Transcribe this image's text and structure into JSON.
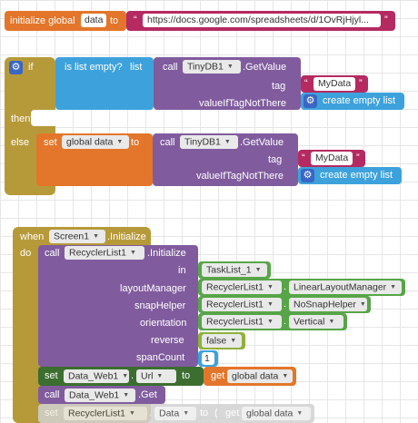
{
  "global_init": {
    "label": "initialize global",
    "var_name": "data",
    "to": "to",
    "url_value": "https://docs.google.com/spreadsheets/d/1OvRjHjyl..."
  },
  "if_block": {
    "if_label": "if",
    "is_empty": "is list empty?",
    "list_label": "list",
    "call": "call",
    "component": "TinyDB1",
    "method": ".GetValue",
    "tag": "tag",
    "tag_value": "MyData",
    "value_if": "valueIfTagNotThere",
    "create_list": "create empty list",
    "then": "then",
    "else": "else",
    "set": "set",
    "global_data": "global data",
    "to": "to"
  },
  "when_block": {
    "when": "when",
    "screen": "Screen1",
    "event": ".Initialize",
    "do": "do",
    "call": "call",
    "recycler": "RecyclerList1",
    "initialize": ".Initialize",
    "in": "in",
    "tasklist": "TaskList_1",
    "layout_manager": "layoutManager",
    "linear": "LinearLayoutManager",
    "snap_helper": "snapHelper",
    "no_snap": "NoSnapHelper",
    "orientation": "orientation",
    "vertical": "Vertical",
    "reverse": "reverse",
    "false_val": "false",
    "span_count": "spanCount",
    "span_value": "1",
    "set": "set",
    "data_web": "Data_Web1",
    "url": "Url",
    "to": "to",
    "get": "get",
    "global_data": "global data",
    "get_method": ".Get",
    "data_prop": "Data",
    "paren": "("
  }
}
